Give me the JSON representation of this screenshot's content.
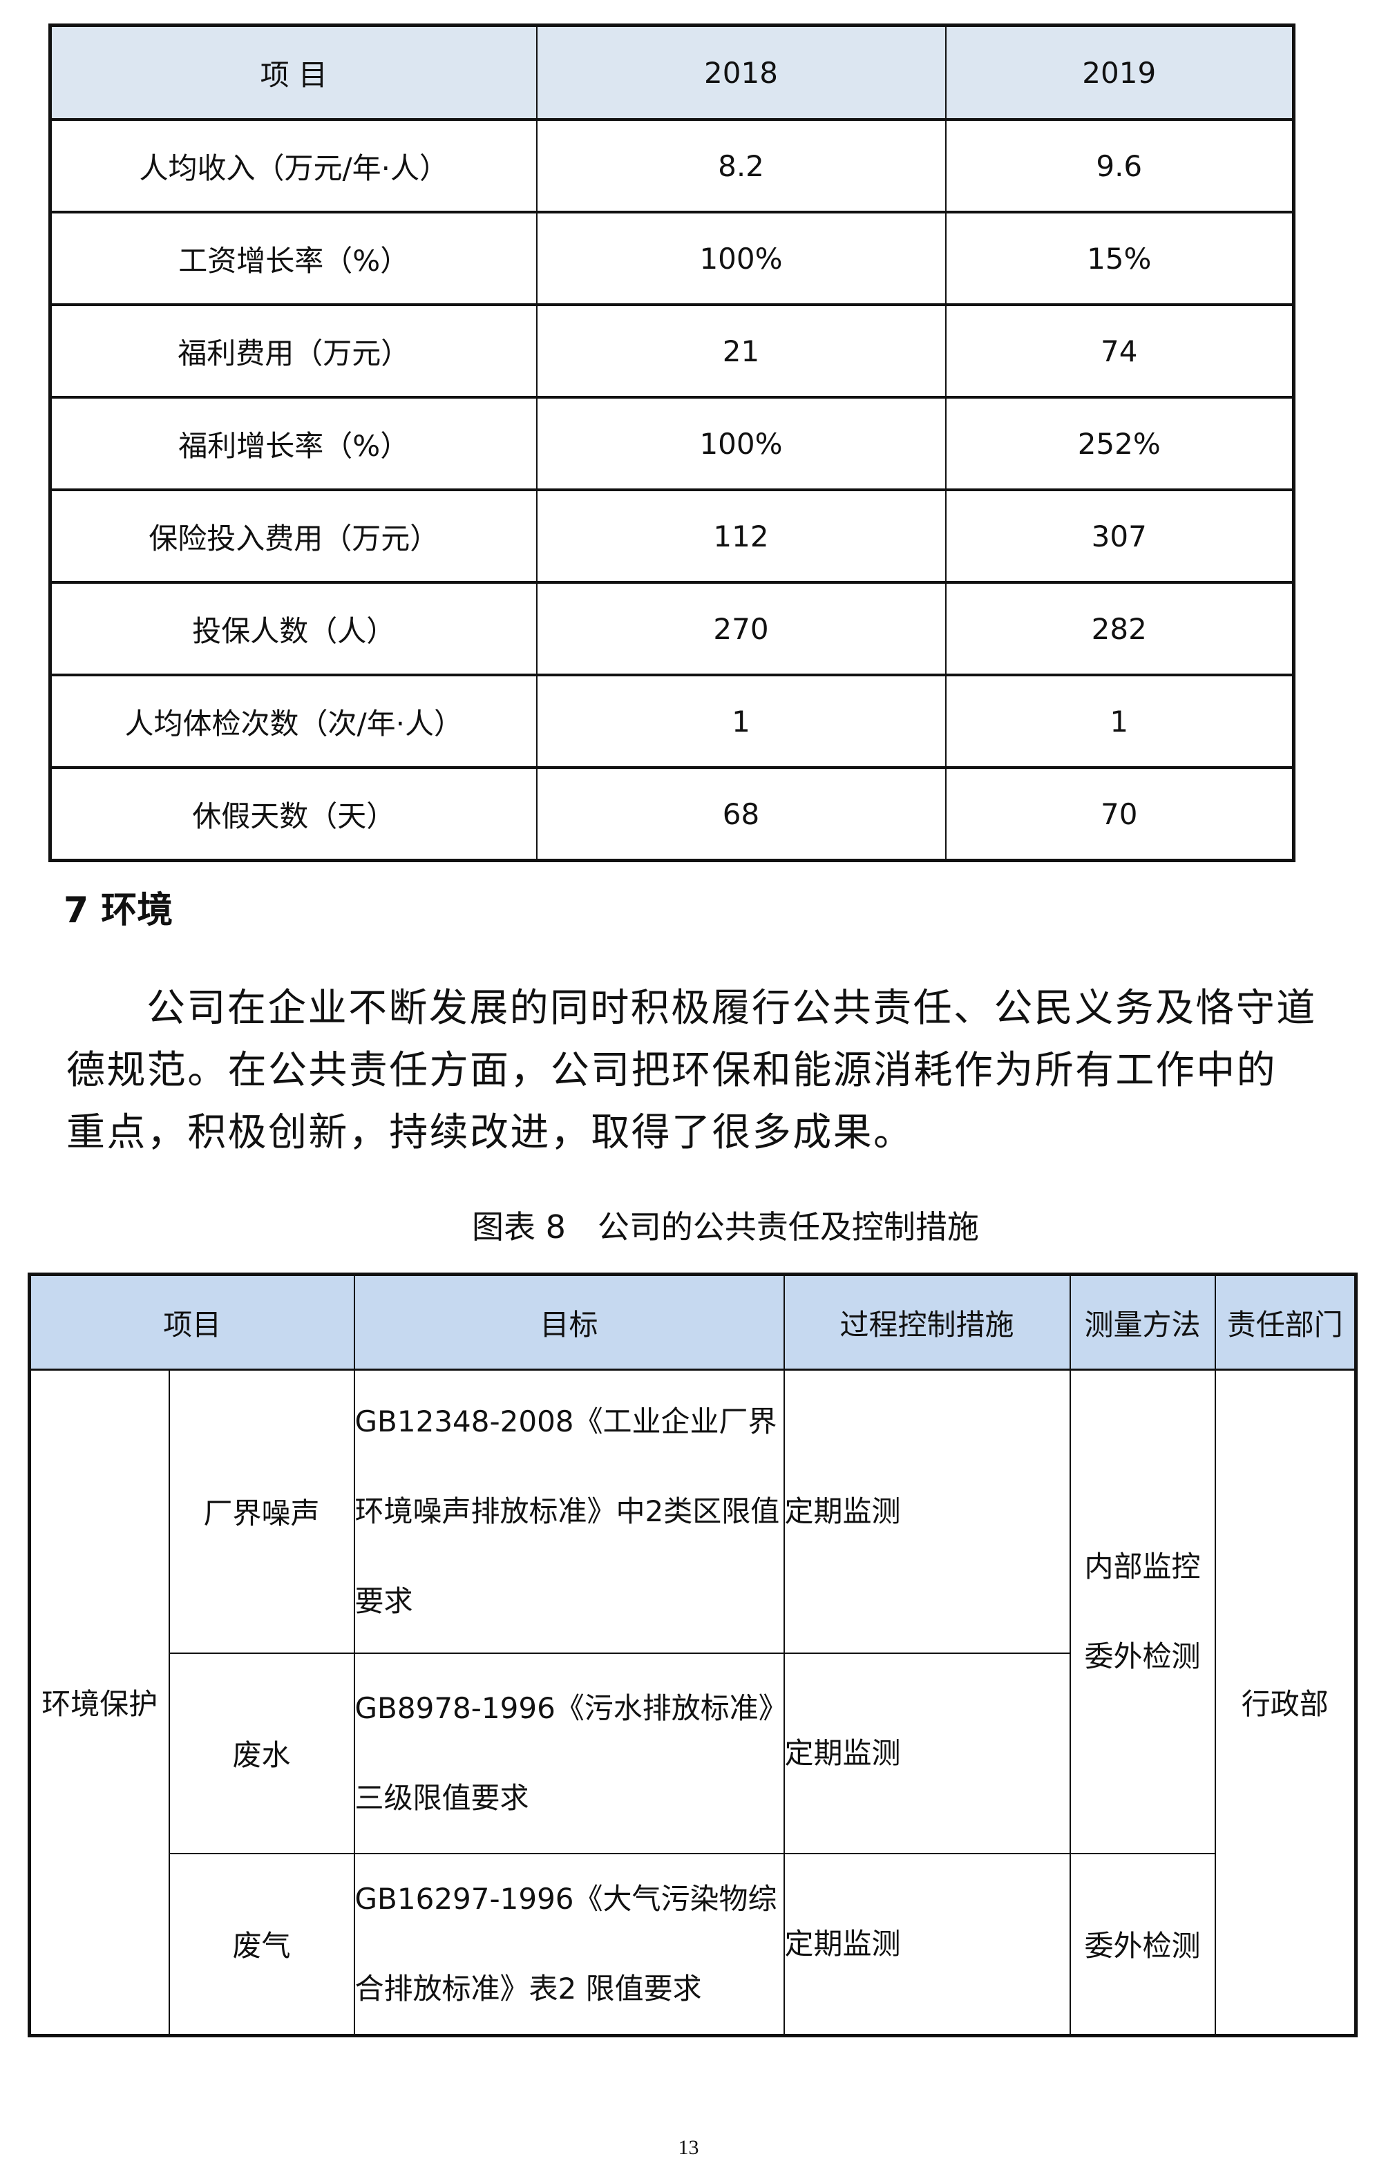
{
  "table1": {
    "headers": [
      "项 目",
      "2018",
      "2019"
    ],
    "rows": [
      [
        "人均收入（万元/年·人）",
        "8.2",
        "9.6"
      ],
      [
        "工资增长率（%）",
        "100%",
        "15%"
      ],
      [
        "福利费用（万元）",
        "21",
        "74"
      ],
      [
        "福利增长率（%）",
        "100%",
        "252%"
      ],
      [
        "保险投入费用（万元）",
        "112",
        "307"
      ],
      [
        "投保人数（人）",
        "270",
        "282"
      ],
      [
        "人均体检次数（次/年·人）",
        "1",
        "1"
      ],
      [
        "休假天数（天）",
        "68",
        "70"
      ]
    ]
  },
  "section_heading": "7  环境",
  "paragraph": "公司在企业不断发展的同时积极履行公共责任、公民义务及恪守道德规范。在公共责任方面，公司把环保和能源消耗作为所有工作中的重点，积极创新，持续改进，取得了很多成果。",
  "caption": "图表 8　公司的公共责任及控制措施",
  "table2": {
    "headers": [
      "项目",
      "目标",
      "过程控制措施",
      "测量方法",
      "责任部门"
    ],
    "category": "环境保护",
    "rows": [
      {
        "item": "厂界噪声",
        "target": "GB12348-2008《工业企业厂界环境噪声排放标准》中2类区限值要求",
        "control": "定期监测"
      },
      {
        "item": "废水",
        "target": "GB8978-1996《污水排放标准》三级限值要求",
        "control": "定期监测"
      },
      {
        "item": "废气",
        "target": "GB16297-1996《大气污染物综合排放标准》表2  限值要求",
        "control": "定期监测"
      }
    ],
    "method_rows_1_2": "内部监控委外检测",
    "method_row_3": "委外检测",
    "department": "行政部"
  },
  "page_number": "13"
}
